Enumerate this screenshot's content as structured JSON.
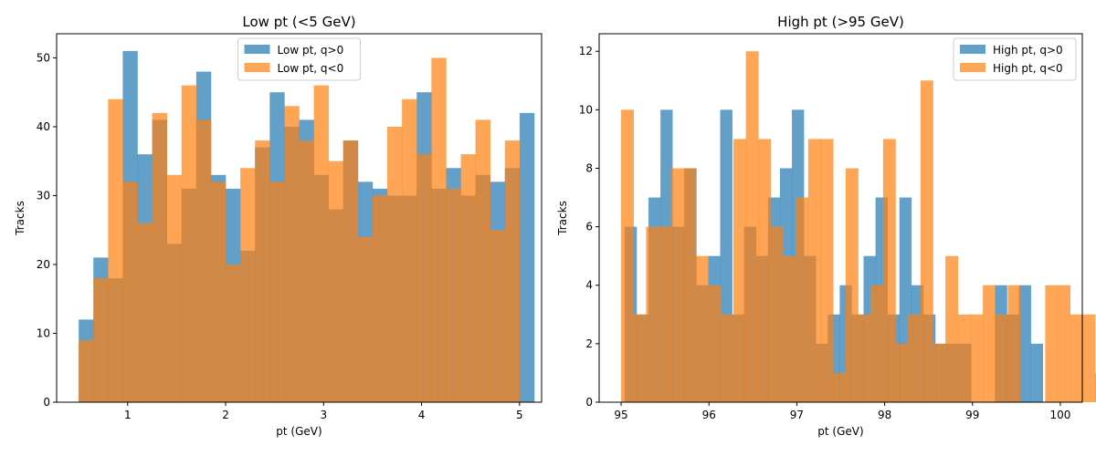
{
  "colors": {
    "positive": "#1f77b4",
    "negative": "#ff7f0e",
    "bar_alpha": 0.7
  },
  "chart_data": [
    {
      "type": "bar",
      "subtype": "histogram",
      "title": "Low pt (<5 GeV)",
      "xlabel": "pt (GeV)",
      "ylabel": "Tracks",
      "xlim": [
        0.275,
        5.225
      ],
      "ylim": [
        0,
        53.5
      ],
      "xticks": [
        1,
        2,
        3,
        4,
        5
      ],
      "yticks": [
        0,
        10,
        20,
        30,
        40,
        50
      ],
      "legend_position": "top-center",
      "grid": false,
      "series": [
        {
          "name": "Low pt, q>0",
          "color": "#1f77b4",
          "bin_start": 0.5,
          "bin_width": 0.15,
          "values": [
            12,
            21,
            18,
            51,
            36,
            41,
            23,
            31,
            48,
            33,
            31,
            22,
            37,
            45,
            40,
            41,
            33,
            28,
            38,
            32,
            31,
            30,
            30,
            45,
            31,
            34,
            30,
            33,
            32,
            34,
            42
          ]
        },
        {
          "name": "Low pt, q<0",
          "color": "#ff7f0e",
          "bin_start": 0.5,
          "bin_width": 0.15,
          "values": [
            9,
            18,
            44,
            32,
            26,
            42,
            33,
            46,
            41,
            32,
            20,
            34,
            38,
            32,
            43,
            38,
            46,
            35,
            38,
            24,
            30,
            40,
            44,
            36,
            50,
            31,
            36,
            41,
            25,
            38
          ]
        }
      ]
    },
    {
      "type": "bar",
      "subtype": "histogram",
      "title": "High pt (>95 GeV)",
      "xlabel": "pt (GeV)",
      "ylabel": "Tracks",
      "xlim": [
        94.75,
        100.25
      ],
      "ylim": [
        0,
        12.6
      ],
      "xticks": [
        95,
        96,
        97,
        98,
        99,
        100
      ],
      "yticks": [
        0,
        2,
        4,
        6,
        8,
        10,
        12
      ],
      "legend_position": "top-right",
      "grid": false,
      "series": [
        {
          "name": "High pt, q>0",
          "color": "#1f77b4",
          "bin_start": 95.04,
          "bin_width": 0.136,
          "values": [
            6,
            3,
            7,
            10,
            6,
            8,
            4,
            5,
            10,
            3,
            6,
            5,
            7,
            8,
            10,
            5,
            2,
            3,
            4,
            3,
            5,
            7,
            3,
            7,
            4,
            3,
            2,
            2,
            2,
            0,
            0,
            4,
            3,
            4,
            2
          ]
        },
        {
          "name": "High pt, q<0",
          "color": "#ff7f0e",
          "bin_start": 95.0,
          "bin_width": 0.142,
          "values": [
            10,
            3,
            6,
            6,
            8,
            8,
            5,
            4,
            3,
            9,
            12,
            9,
            6,
            5,
            7,
            9,
            9,
            1,
            8,
            3,
            4,
            9,
            2,
            3,
            11,
            2,
            5,
            3,
            3,
            4,
            3,
            4,
            0,
            0,
            4,
            4,
            3,
            3,
            1
          ]
        }
      ]
    }
  ]
}
